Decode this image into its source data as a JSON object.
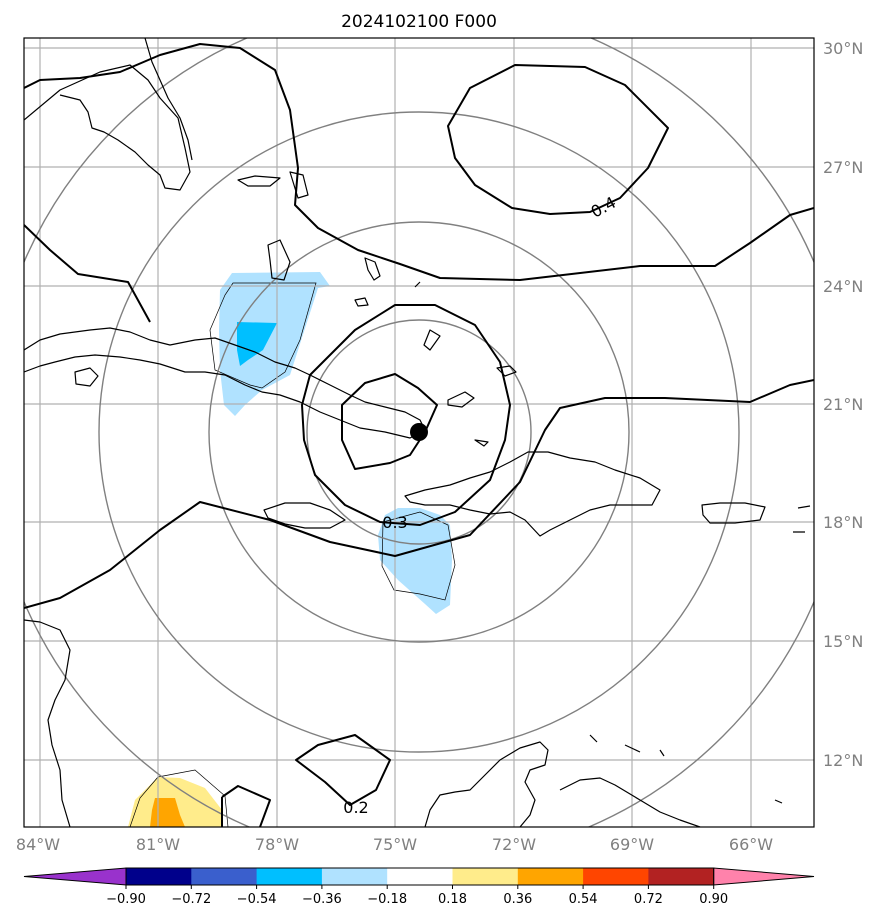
{
  "title": "2024102100 F000",
  "lat_labels": [
    "30°N",
    "27°N",
    "24°N",
    "21°N",
    "18°N",
    "15°N",
    "12°N"
  ],
  "lon_labels": [
    "84°W",
    "81°W",
    "78°W",
    "75°W",
    "72°W",
    "69°W",
    "66°W"
  ],
  "contour_labels": [
    "0.4",
    "0.3",
    "0.2"
  ],
  "colorbar": {
    "colors": [
      "#9932cc",
      "#00008b",
      "#3a5fcd",
      "#00bfff",
      "#b0e2ff",
      "#ffffff",
      "#ffec8b",
      "#ffa500",
      "#ff4500",
      "#b22222",
      "#ff82ab"
    ],
    "ticks": [
      "−0.90",
      "−0.72",
      "−0.54",
      "−0.36",
      "−0.18",
      "0.18",
      "0.36",
      "0.54",
      "0.72",
      "0.90"
    ]
  },
  "shading_colors": {
    "light_blue": "#b0e2ff",
    "deep_sky_blue": "#00bfff",
    "yellow": "#ffec8b",
    "orange": "#ffa500"
  },
  "storm_center": {
    "lat": 20.3,
    "lon": -73.7
  }
}
